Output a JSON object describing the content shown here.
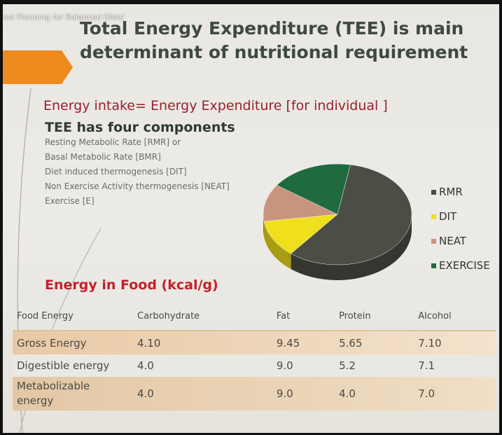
{
  "header": {
    "video_title": "nal Planning for Balanced Diets'"
  },
  "slide": {
    "title_lines": [
      "Total Energy Expenditure (TEE) is main",
      "determinant of nutritional requirement"
    ],
    "equation": "Energy intake= Energy Expenditure [for individual ]",
    "components_heading": "TEE has four components",
    "components": [
      "Resting Metabolic Rate [RMR] or",
      "Basal Metabolic Rate [BMR]",
      "Diet induced thermogenesis [DIT]",
      "Non Exercise Activity thermogenesis [NEAT]",
      "Exercise [E]"
    ],
    "table_heading": "Energy in Food (kcal/g)"
  },
  "chart_data": {
    "type": "pie",
    "categories": [
      "RMR",
      "DIT",
      "NEAT",
      "EXERCISE"
    ],
    "values": [
      58,
      12,
      12,
      18
    ],
    "colors": [
      "#4a4e44",
      "#f0df1c",
      "#c8947e",
      "#1f6b3f"
    ]
  },
  "table": {
    "header": [
      "Food Energy",
      "Carbohydrate",
      "Fat",
      "Protein",
      "Alcohol"
    ],
    "rows": [
      [
        "Gross Energy",
        "4.10",
        "9.45",
        "5.65",
        "7.10"
      ],
      [
        "Digestible energy",
        "4.0",
        "9.0",
        "5.2",
        "7.1"
      ],
      [
        "Metabolizable energy",
        "4.0",
        "9.0",
        "4.0",
        "7.0"
      ]
    ]
  }
}
